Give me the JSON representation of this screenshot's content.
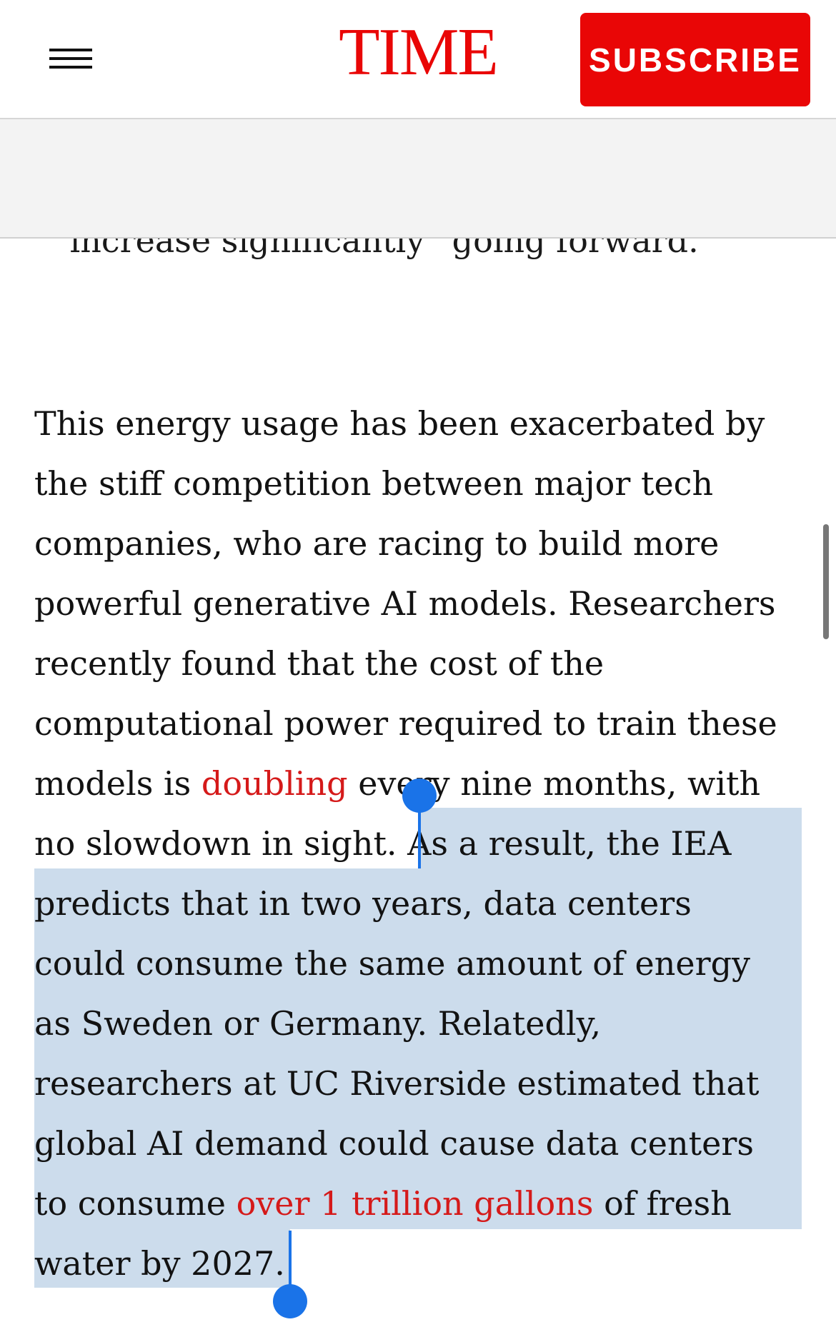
{
  "header": {
    "logo": "TIME",
    "subscribe": "SUBSCRIBE"
  },
  "article": {
    "partial_line": "“increase significantly” going forward.",
    "lines": [
      [
        {
          "text": "This energy usage has been exacerbated by"
        }
      ],
      [
        {
          "text": "the stiff competition between major tech"
        }
      ],
      [
        {
          "text": "companies, who are racing to build more"
        }
      ],
      [
        {
          "text": "powerful generative AI models. Researchers"
        }
      ],
      [
        {
          "text": "recently found that the cost of the"
        }
      ],
      [
        {
          "text": "computational power required to train these"
        }
      ],
      [
        {
          "text": "models is "
        },
        {
          "text": "doubling",
          "link": true
        },
        {
          "text": " every nine months, with"
        }
      ],
      [
        {
          "text": "no slowdown in sight. As a result, the IEA"
        }
      ],
      [
        {
          "text": "predicts that in two years, data centers"
        }
      ],
      [
        {
          "text": "could consume the same amount of energy"
        }
      ],
      [
        {
          "text": "as Sweden or Germany. Relatedly,"
        }
      ],
      [
        {
          "text": "researchers at UC Riverside estimated that"
        }
      ],
      [
        {
          "text": "global AI demand could cause data centers"
        }
      ],
      [
        {
          "text": "to consume "
        },
        {
          "text": "over 1 trillion gallons",
          "link": true
        },
        {
          "text": " of fresh"
        }
      ],
      [
        {
          "text": "water by 2027."
        }
      ]
    ]
  }
}
